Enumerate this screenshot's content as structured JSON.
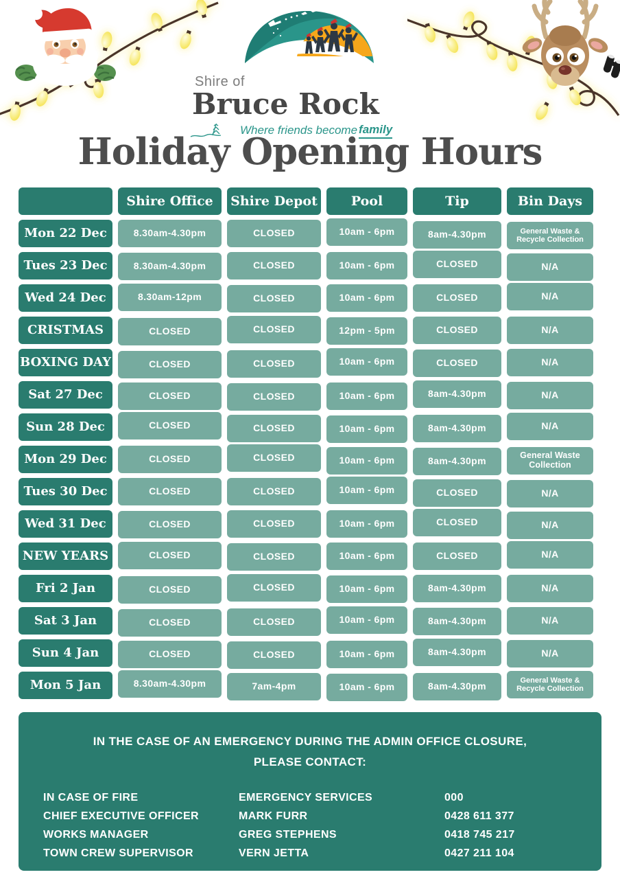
{
  "logo": {
    "shire_of": "Shire of",
    "name": "Bruce Rock",
    "tagline_prefix": "Where friends become ",
    "tagline_bold": "family"
  },
  "title": "Holiday Opening Hours",
  "table": {
    "headers": [
      "",
      "Shire Office",
      "Shire Depot",
      "Pool",
      "Tip",
      "Bin Days"
    ],
    "rows": [
      {
        "day": "Mon 22 Dec",
        "office": "8.30am-4.30pm",
        "depot": "CLOSED",
        "pool": "10am - 6pm",
        "tip": "8am-4.30pm",
        "bins": "General Waste & Recycle Collection"
      },
      {
        "day": "Tues 23 Dec",
        "office": "8.30am-4.30pm",
        "depot": "CLOSED",
        "pool": "10am - 6pm",
        "tip": "CLOSED",
        "bins": "N/A"
      },
      {
        "day": "Wed 24 Dec",
        "office": "8.30am-12pm",
        "depot": "CLOSED",
        "pool": "10am - 6pm",
        "tip": "CLOSED",
        "bins": "N/A"
      },
      {
        "day": "CRISTMAS",
        "office": "CLOSED",
        "depot": "CLOSED",
        "pool": "12pm - 5pm",
        "tip": "CLOSED",
        "bins": "N/A"
      },
      {
        "day": "BOXING DAY",
        "office": "CLOSED",
        "depot": "CLOSED",
        "pool": "10am - 6pm",
        "tip": "CLOSED",
        "bins": "N/A"
      },
      {
        "day": "Sat 27 Dec",
        "office": "CLOSED",
        "depot": "CLOSED",
        "pool": "10am - 6pm",
        "tip": "8am-4.30pm",
        "bins": "N/A"
      },
      {
        "day": "Sun 28 Dec",
        "office": "CLOSED",
        "depot": "CLOSED",
        "pool": "10am - 6pm",
        "tip": "8am-4.30pm",
        "bins": "N/A"
      },
      {
        "day": "Mon 29 Dec",
        "office": "CLOSED",
        "depot": "CLOSED",
        "pool": "10am - 6pm",
        "tip": "8am-4.30pm",
        "bins": "General Waste Collection"
      },
      {
        "day": "Tues 30 Dec",
        "office": "CLOSED",
        "depot": "CLOSED",
        "pool": "10am - 6pm",
        "tip": "CLOSED",
        "bins": "N/A"
      },
      {
        "day": "Wed 31 Dec",
        "office": "CLOSED",
        "depot": "CLOSED",
        "pool": "10am - 6pm",
        "tip": "CLOSED",
        "bins": "N/A"
      },
      {
        "day": "NEW YEARS",
        "office": "CLOSED",
        "depot": "CLOSED",
        "pool": "10am - 6pm",
        "tip": "CLOSED",
        "bins": "N/A"
      },
      {
        "day": "Fri 2 Jan",
        "office": "CLOSED",
        "depot": "CLOSED",
        "pool": "10am - 6pm",
        "tip": "8am-4.30pm",
        "bins": "N/A"
      },
      {
        "day": "Sat 3 Jan",
        "office": "CLOSED",
        "depot": "CLOSED",
        "pool": "10am - 6pm",
        "tip": "8am-4.30pm",
        "bins": "N/A"
      },
      {
        "day": "Sun 4 Jan",
        "office": "CLOSED",
        "depot": "CLOSED",
        "pool": "10am - 6pm",
        "tip": "8am-4.30pm",
        "bins": "N/A"
      },
      {
        "day": "Mon 5 Jan",
        "office": "8.30am-4.30pm",
        "depot": "7am-4pm",
        "pool": "10am - 6pm",
        "tip": "8am-4.30pm",
        "bins": "General Waste & Recycle Collection"
      }
    ]
  },
  "footer": {
    "heading_line1": "IN THE CASE OF AN EMERGENCY DURING THE ADMIN OFFICE CLOSURE,",
    "heading_line2": "PLEASE CONTACT:",
    "contacts": [
      {
        "role": "IN CASE OF FIRE",
        "name": "EMERGENCY SERVICES",
        "phone": "000"
      },
      {
        "role": "CHIEF EXECUTIVE OFFICER",
        "name": "MARK FURR",
        "phone": "0428 611 377"
      },
      {
        "role": "WORKS MANAGER",
        "name": "GREG STEPHENS",
        "phone": "0418 745 217"
      },
      {
        "role": "TOWN CREW SUPERVISOR",
        "name": "VERN JETTA",
        "phone": "0427 211 104"
      }
    ]
  },
  "colors": {
    "dark_teal": "#2a7c6f",
    "light_teal": "#76ab9f",
    "title_gray": "#4d4d4d",
    "logo_teal": "#2a958a",
    "logo_orange": "#f6a71b",
    "bulb_yellow": "#f9e96d"
  }
}
